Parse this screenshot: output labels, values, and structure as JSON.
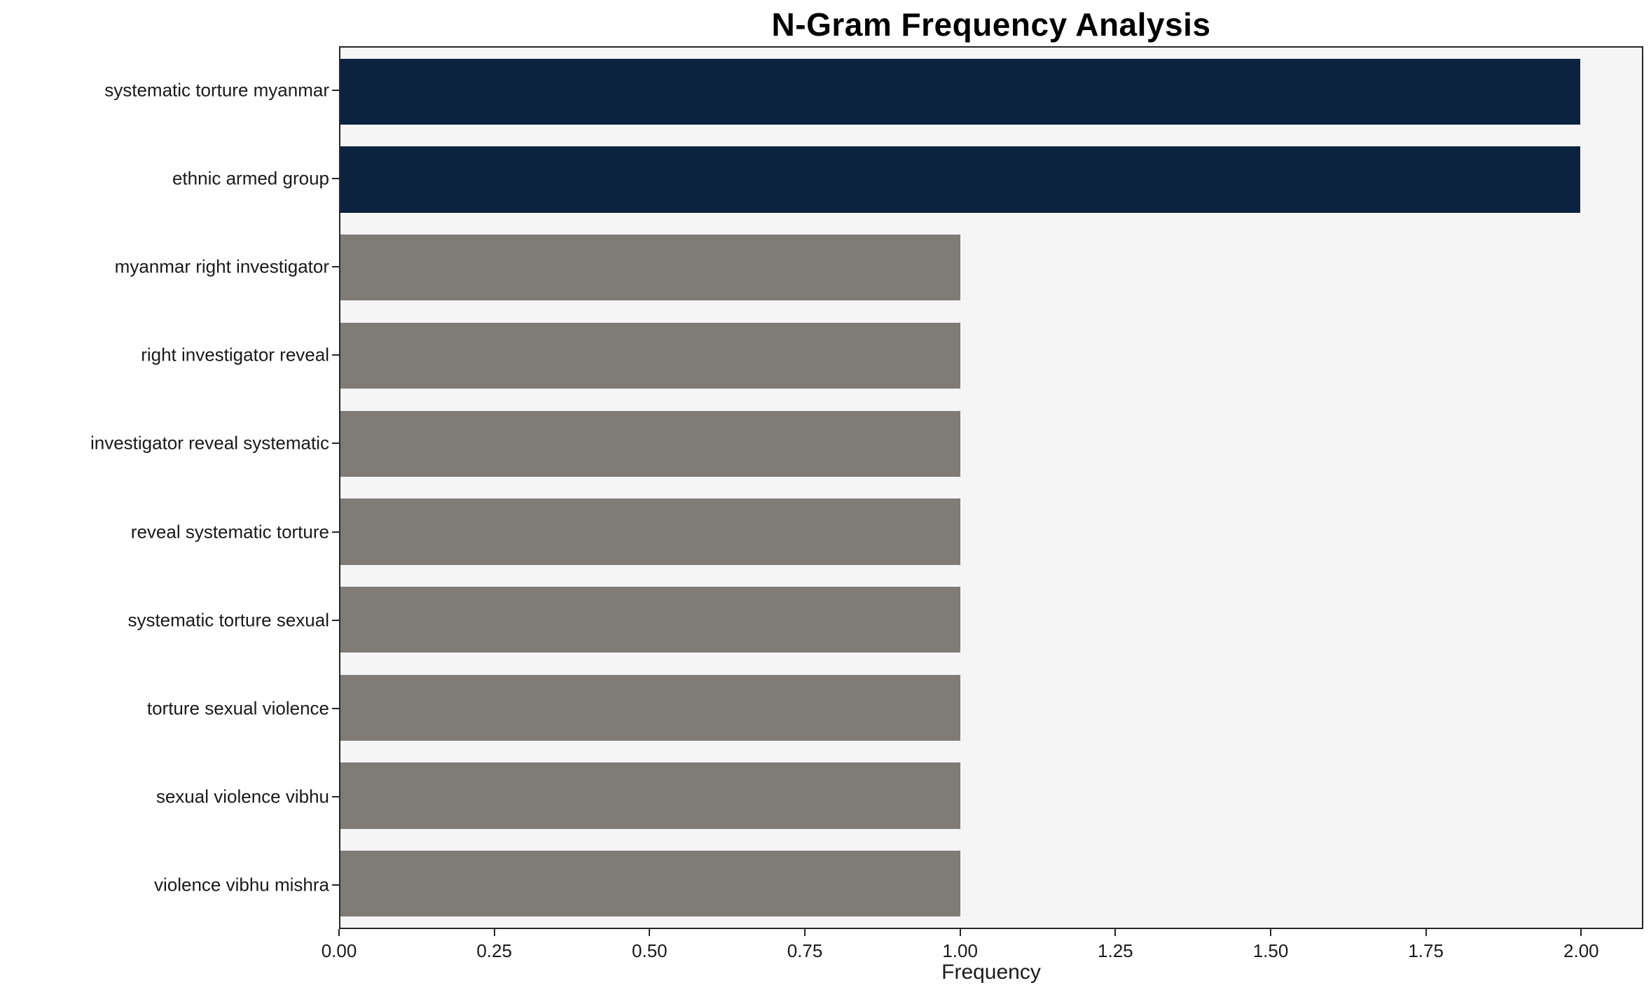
{
  "chart_data": {
    "type": "bar",
    "orientation": "horizontal",
    "title": "N-Gram Frequency Analysis",
    "xlabel": "Frequency",
    "ylabel": "",
    "categories": [
      "systematic torture myanmar",
      "ethnic armed group",
      "myanmar right investigator",
      "right investigator reveal",
      "investigator reveal systematic",
      "reveal systematic torture",
      "systematic torture sexual",
      "torture sexual violence",
      "sexual violence vibhu",
      "violence vibhu mishra"
    ],
    "values": [
      2,
      2,
      1,
      1,
      1,
      1,
      1,
      1,
      1,
      1
    ],
    "bar_colors": [
      "#0c2340",
      "#0c2340",
      "#7f7b76",
      "#7f7b76",
      "#7f7b76",
      "#7f7b76",
      "#7f7b76",
      "#7f7b76",
      "#7f7b76",
      "#7f7b76"
    ],
    "xlim": [
      0,
      2.1
    ],
    "xticks": [
      0,
      0.25,
      0.5,
      0.75,
      1.0,
      1.25,
      1.5,
      1.75,
      2.0
    ],
    "xtick_labels": [
      "0.00",
      "0.25",
      "0.50",
      "0.75",
      "1.00",
      "1.25",
      "1.50",
      "1.75",
      "2.00"
    ],
    "plot_background": "#f5f5f5",
    "axis_color": "#262626",
    "highlight_color": "#0c2340",
    "default_color": "#7f7b76",
    "grid": false,
    "legend": "none"
  }
}
